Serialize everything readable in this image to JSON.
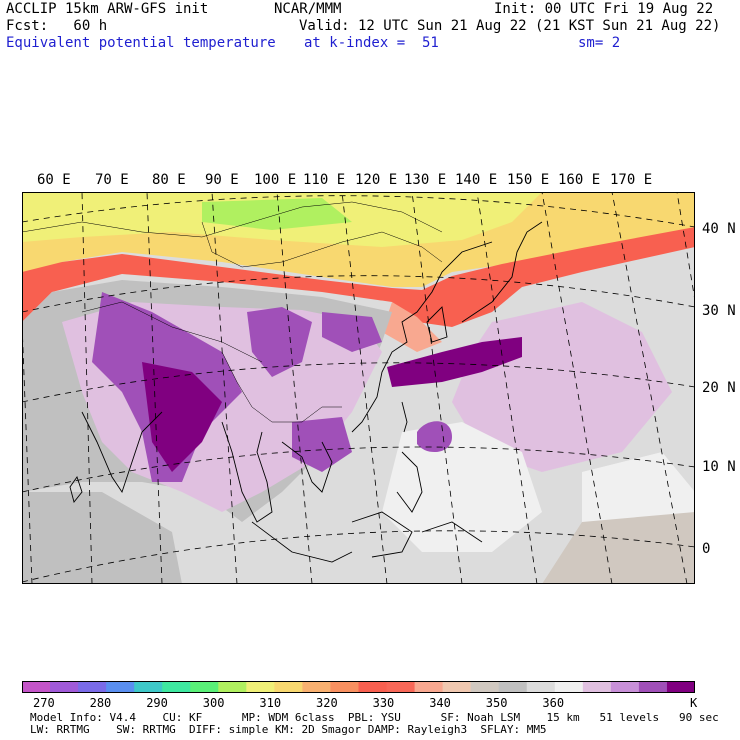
{
  "header": {
    "line1_left": "ACCLIP 15km ARW-GFS init",
    "line1_center": "NCAR/MMM",
    "line1_right": "Init: 00 UTC Fri 19 Aug 22",
    "line2_left": "Fcst:   60 h",
    "line2_right": "Valid: 12 UTC Sun 21 Aug 22 (21 KST Sun 21 Aug 22)",
    "line3_left": "Equivalent potential temperature",
    "line3_center": "at k-index =  51",
    "line3_right": "sm= 2"
  },
  "map": {
    "lon_labels": [
      "60 E",
      "70 E",
      "80 E",
      "90 E",
      "100 E",
      "110 E",
      "120 E",
      "130 E",
      "140 E",
      "150 E",
      "160 E",
      "170 E"
    ],
    "lat_labels": [
      "40 N",
      "30 N",
      "20 N",
      "10 N",
      "0"
    ]
  },
  "colorbar": {
    "unit": "K",
    "labels": [
      "270",
      "280",
      "290",
      "300",
      "310",
      "320",
      "330",
      "340",
      "350",
      "360"
    ],
    "colors": [
      "#c455c8",
      "#a05ad8",
      "#7a6be8",
      "#5a8ff0",
      "#3ec8c8",
      "#3ee8a0",
      "#5af078",
      "#b0f060",
      "#f0f078",
      "#f8d870",
      "#f8b070",
      "#f89060",
      "#f86050",
      "#f86858",
      "#f8a890",
      "#f0c8b0",
      "#d0c8c0",
      "#c0c0c0",
      "#dcdcdc",
      "#f0f0f0",
      "#e0c0e0",
      "#c890d8",
      "#a050b8",
      "#800080"
    ]
  },
  "footer": {
    "line1": "Model Info: V4.4    CU: KF      MP: WDM 6class  PBL: YSU      SF: Noah LSM    15 km   51 levels   90 sec",
    "line2": "LW: RRTMG    SW: RRTMG  DIFF: simple KM: 2D Smagor DAMP: Rayleigh3  SFLAY: MM5"
  }
}
